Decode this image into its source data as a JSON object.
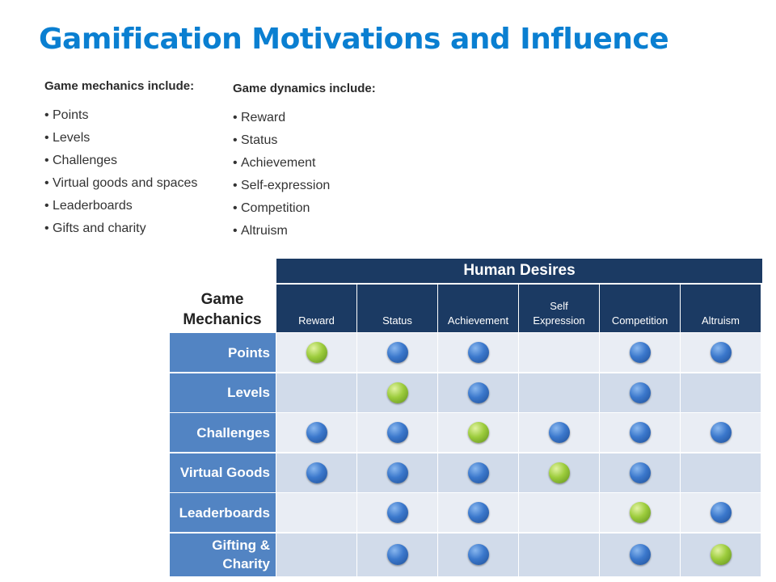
{
  "title": "Gamification Motivations and Influence",
  "mechanics_list": {
    "heading": "Game mechanics include:",
    "items": [
      "Points",
      "Levels",
      "Challenges",
      "Virtual goods and spaces",
      "Leaderboards",
      "Gifts and charity"
    ]
  },
  "dynamics_list": {
    "heading": "Game dynamics include:",
    "items": [
      "Reward",
      "Status",
      "Achievement",
      "Self-expression",
      "Competition",
      "Altruism"
    ]
  },
  "bullet": "•",
  "matrix": {
    "columns_heading": "Human Desires",
    "rows_heading": "Game\nMechanics",
    "columns": [
      "Reward",
      "Status",
      "Achievement",
      "Self\nExpression",
      "Competition",
      "Altruism"
    ],
    "rows": [
      "Points",
      "Levels",
      "Challenges",
      "Virtual Goods",
      "Leaderboards",
      "Gifting &\nCharity"
    ],
    "marks": [
      [
        "green",
        "blue",
        "blue",
        "",
        "blue",
        "blue"
      ],
      [
        "",
        "green",
        "blue",
        "",
        "blue",
        ""
      ],
      [
        "blue",
        "blue",
        "green",
        "blue",
        "blue",
        "blue"
      ],
      [
        "blue",
        "blue",
        "blue",
        "green",
        "blue",
        ""
      ],
      [
        "",
        "blue",
        "blue",
        "",
        "green",
        "blue"
      ],
      [
        "",
        "blue",
        "blue",
        "",
        "blue",
        "green"
      ]
    ],
    "colors": {
      "header": "#1b3a63",
      "row_label": "#5284c3",
      "row_light": "#e9edf4",
      "row_dark": "#d1dbea",
      "dot_blue": "#3b78cc",
      "dot_green": "#9ccc3c"
    }
  }
}
